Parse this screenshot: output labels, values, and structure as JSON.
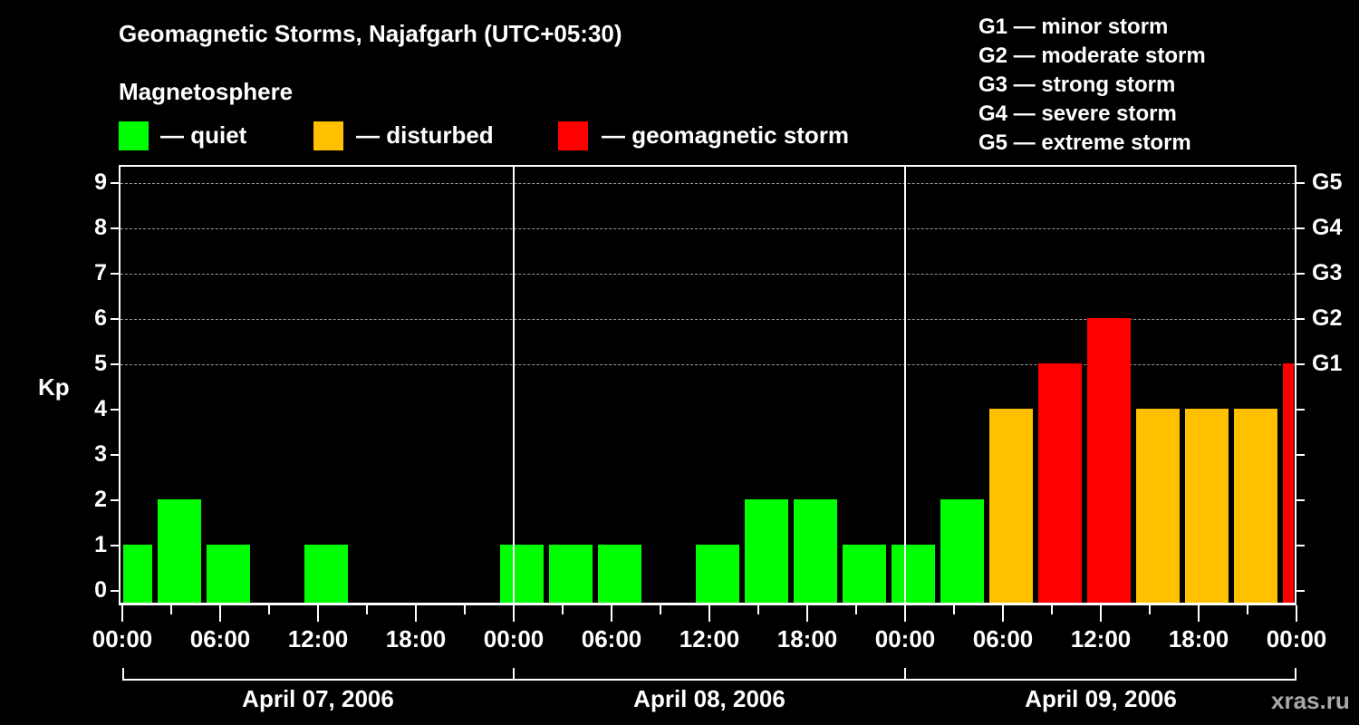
{
  "header": {
    "title": "Geomagnetic Storms, Najafgarh (UTC+05:30)",
    "subtitle": "Magnetosphere"
  },
  "legend": [
    {
      "label": "— quiet",
      "color": "#00ff00"
    },
    {
      "label": "— disturbed",
      "color": "#ffc000"
    },
    {
      "label": "— geomagnetic storm",
      "color": "#ff0000"
    }
  ],
  "g_legend": [
    "G1 — minor storm",
    "G2 — moderate storm",
    "G3 — strong storm",
    "G4 — severe storm",
    "G5 — extreme storm"
  ],
  "axes": {
    "ylabel": "Kp",
    "yticks": [
      "0",
      "1",
      "2",
      "3",
      "4",
      "5",
      "6",
      "7",
      "8",
      "9"
    ],
    "gticks": [
      {
        "label": "G1",
        "kp": 5
      },
      {
        "label": "G2",
        "kp": 6
      },
      {
        "label": "G3",
        "kp": 7
      },
      {
        "label": "G4",
        "kp": 8
      },
      {
        "label": "G5",
        "kp": 9
      }
    ],
    "xticks": [
      "00:00",
      "06:00",
      "12:00",
      "18:00",
      "00:00",
      "06:00",
      "12:00",
      "18:00",
      "00:00",
      "06:00",
      "12:00",
      "18:00",
      "00:00"
    ],
    "dates": [
      "April 07, 2006",
      "April 08, 2006",
      "April 09, 2006"
    ]
  },
  "credit": "xras.ru",
  "chart_data": {
    "type": "bar",
    "title": "Geomagnetic Storms, Najafgarh (UTC+05:30)",
    "xlabel": "",
    "ylabel": "Kp",
    "ylim": [
      0,
      9
    ],
    "grid": true,
    "legend_position": "top",
    "categories": [
      "Apr07 00:00",
      "Apr07 02:30",
      "Apr07 05:30",
      "Apr07 08:30",
      "Apr07 11:30",
      "Apr07 14:30",
      "Apr07 17:30",
      "Apr07 20:30",
      "Apr07 23:30",
      "Apr08 02:30",
      "Apr08 05:30",
      "Apr08 08:30",
      "Apr08 11:30",
      "Apr08 14:30",
      "Apr08 17:30",
      "Apr08 20:30",
      "Apr08 23:30",
      "Apr09 02:30",
      "Apr09 05:30",
      "Apr09 08:30",
      "Apr09 11:30",
      "Apr09 14:30",
      "Apr09 17:30",
      "Apr09 20:30",
      "Apr09 23:30"
    ],
    "values": [
      1,
      2,
      1,
      0,
      1,
      0,
      0,
      0,
      1,
      1,
      1,
      0,
      1,
      2,
      2,
      1,
      1,
      2,
      4,
      5,
      6,
      4,
      4,
      4,
      5
    ],
    "status": [
      "quiet",
      "quiet",
      "quiet",
      "quiet",
      "quiet",
      "quiet",
      "quiet",
      "quiet",
      "quiet",
      "quiet",
      "quiet",
      "quiet",
      "quiet",
      "quiet",
      "quiet",
      "quiet",
      "quiet",
      "quiet",
      "disturbed",
      "storm",
      "storm",
      "disturbed",
      "disturbed",
      "disturbed",
      "storm"
    ]
  }
}
